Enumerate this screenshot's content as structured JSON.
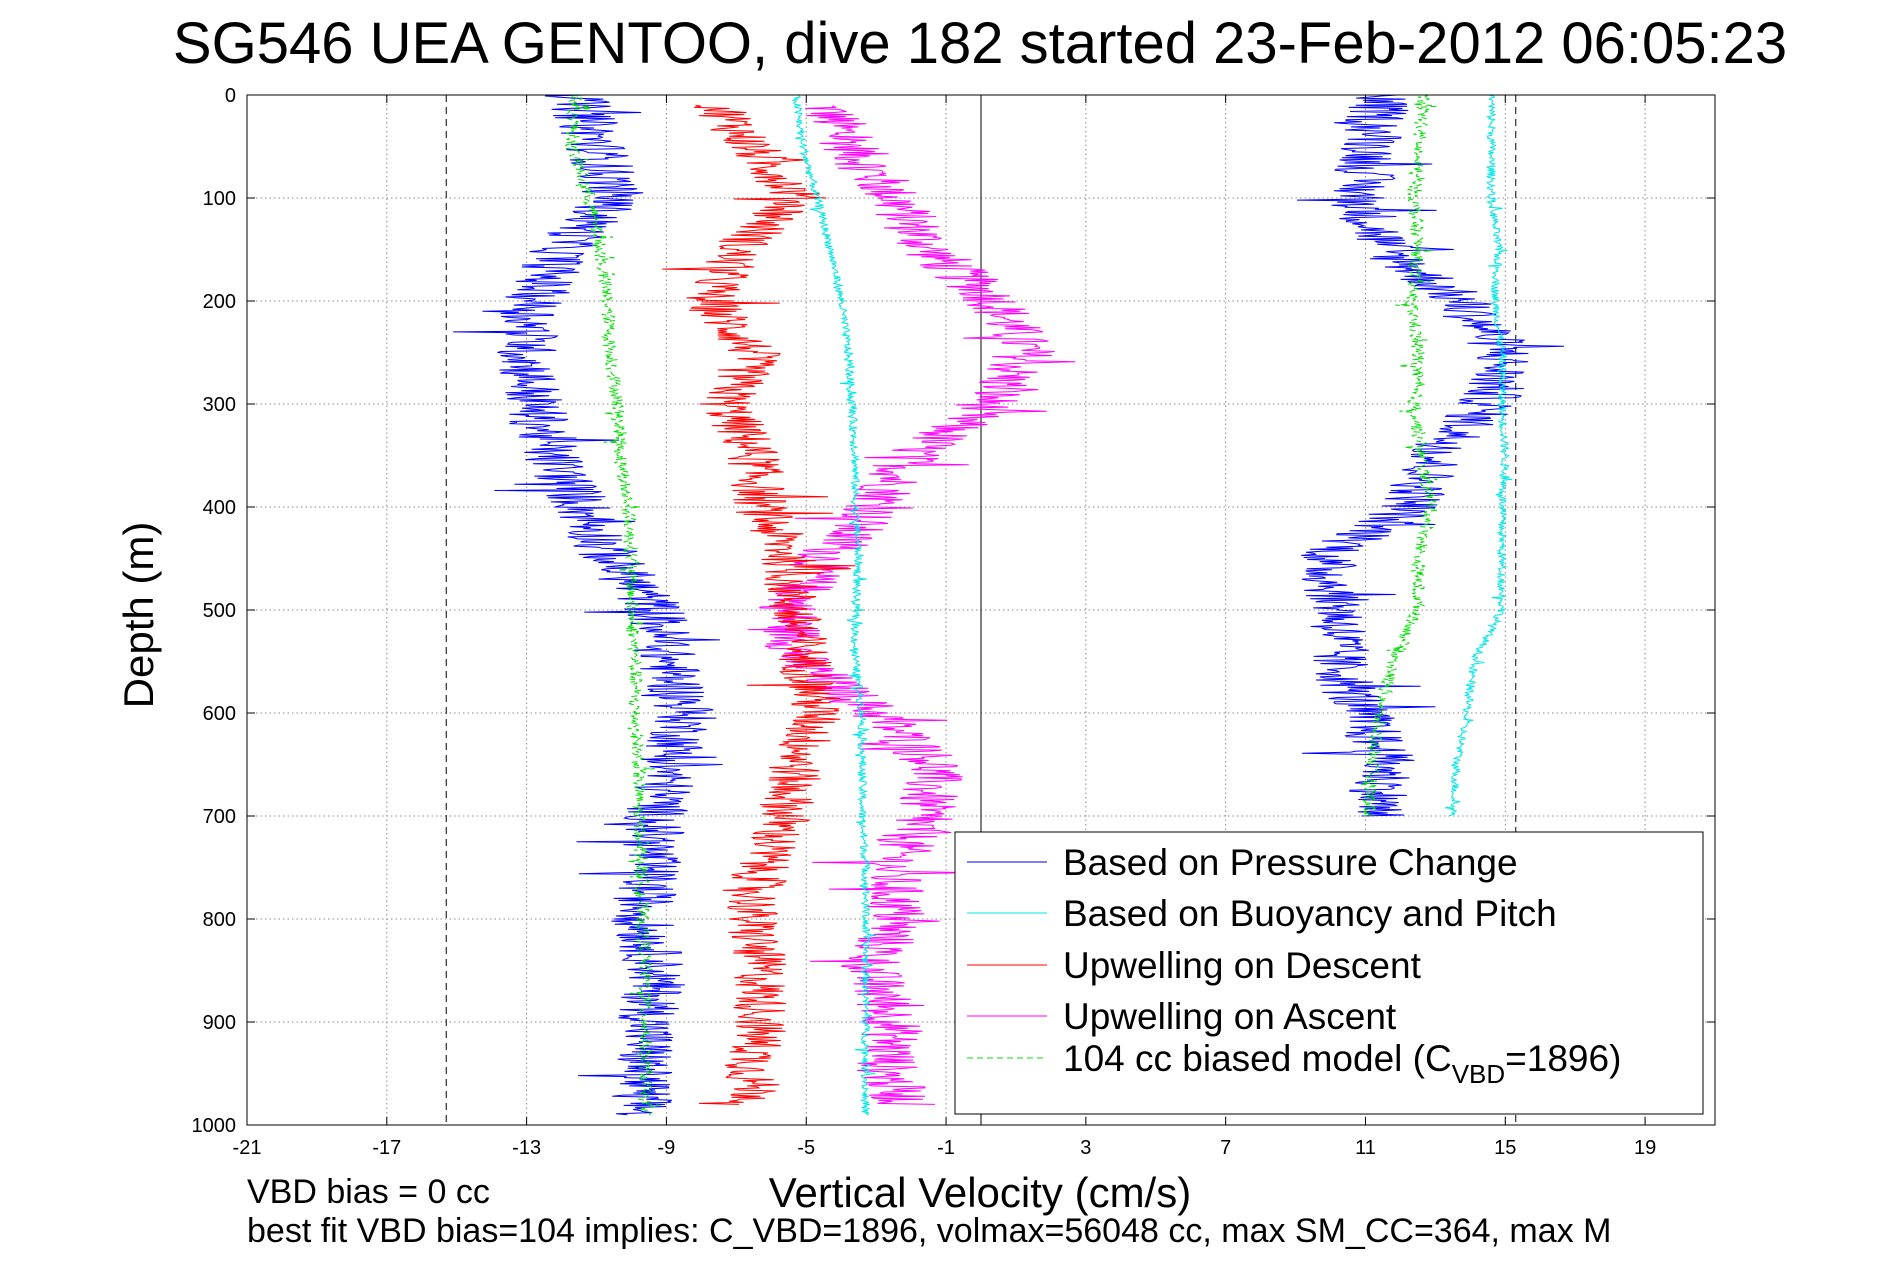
{
  "chart_data": {
    "type": "line",
    "title": "SG546 UEA GENTOO, dive 182 started 23-Feb-2012 06:05:23",
    "xlabel": "Vertical Velocity (cm/s)",
    "ylabel": "Depth (m)",
    "xlim": [
      -21,
      21
    ],
    "ylim": [
      0,
      1000
    ],
    "y_reversed": true,
    "grid": true,
    "grid_style": "dotted",
    "x_ticks": [
      -21,
      -17,
      -13,
      -9,
      -5,
      -1,
      3,
      7,
      11,
      15,
      19
    ],
    "x_tick_labels": [
      "-21",
      "-17",
      "-13",
      "-9",
      "-5",
      "-1",
      "3",
      "7",
      "11",
      "15",
      "19"
    ],
    "y_ticks": [
      0,
      100,
      200,
      300,
      400,
      500,
      600,
      700,
      800,
      900,
      1000
    ],
    "y_tick_labels": [
      "0",
      "100",
      "200",
      "300",
      "400",
      "500",
      "600",
      "700",
      "800",
      "900",
      "1000"
    ],
    "reference_lines": [
      {
        "axis": "x",
        "value": -15.3,
        "style": "dashed",
        "color": "#000000"
      },
      {
        "axis": "x",
        "value": 15.3,
        "style": "dashed",
        "color": "#000000"
      },
      {
        "axis": "x",
        "value": 0,
        "style": "solid",
        "color": "#000000"
      }
    ],
    "legend_position": "lower-right",
    "series": [
      {
        "name": "Based on Pressure Change",
        "color": "#0000ff",
        "style": "solid",
        "noise": 0.9,
        "segments": [
          {
            "depth": [
              0,
              50,
              100,
              150,
              200,
              250,
              300,
              350,
              400,
              450,
              500,
              550,
              600,
              650,
              700,
              750,
              800,
              850,
              900,
              950,
              990
            ],
            "values": [
              -11.6,
              -11.0,
              -10.5,
              -12.0,
              -12.8,
              -13.0,
              -12.8,
              -12.3,
              -11.4,
              -10.6,
              -9.3,
              -9.0,
              -8.4,
              -8.9,
              -9.3,
              -9.5,
              -9.7,
              -9.3,
              -9.5,
              -9.7,
              -9.7
            ]
          },
          {
            "depth": [
              0,
              50,
              100,
              150,
              200,
              250,
              300,
              350,
              400,
              450,
              500,
              550,
              600,
              650,
              700
            ],
            "values": [
              11.4,
              11.2,
              10.8,
              11.6,
              13.7,
              15.0,
              14.5,
              13.0,
              12.3,
              9.8,
              10.3,
              10.2,
              10.9,
              11.6,
              11.3
            ]
          }
        ]
      },
      {
        "name": "Based on Buoyancy and Pitch",
        "color": "#00e5e5",
        "style": "solid",
        "noise": 0.12,
        "segments": [
          {
            "depth": [
              0,
              50,
              100,
              150,
              200,
              250,
              300,
              350,
              400,
              450,
              500,
              550,
              600,
              650,
              700,
              750,
              800,
              850,
              900,
              950,
              990
            ],
            "values": [
              -5.3,
              -5.1,
              -4.7,
              -4.3,
              -4.0,
              -3.8,
              -3.7,
              -3.6,
              -3.6,
              -3.5,
              -3.6,
              -3.6,
              -3.4,
              -3.4,
              -3.4,
              -3.3,
              -3.3,
              -3.3,
              -3.3,
              -3.3,
              -3.3
            ]
          },
          {
            "depth": [
              0,
              50,
              100,
              150,
              200,
              250,
              300,
              350,
              400,
              450,
              500,
              550,
              600,
              650,
              700
            ],
            "values": [
              14.6,
              14.6,
              14.6,
              14.8,
              14.7,
              14.9,
              14.9,
              15.0,
              14.9,
              14.9,
              14.9,
              14.1,
              13.9,
              13.6,
              13.5
            ]
          }
        ]
      },
      {
        "name": "Upwelling on Descent",
        "color": "#ff0000",
        "style": "solid",
        "noise": 0.8,
        "segments": [
          {
            "depth": [
              10,
              50,
              100,
              150,
              200,
              250,
              300,
              350,
              400,
              450,
              500,
              550,
              600,
              650,
              700,
              750,
              800,
              850,
              900,
              950,
              980
            ],
            "values": [
              -7.5,
              -6.6,
              -5.2,
              -7.0,
              -7.8,
              -6.5,
              -7.3,
              -6.5,
              -6.3,
              -5.5,
              -5.4,
              -5.0,
              -4.7,
              -5.3,
              -5.6,
              -6.3,
              -6.6,
              -6.3,
              -6.3,
              -6.6,
              -6.4
            ]
          }
        ]
      },
      {
        "name": "Upwelling on Ascent",
        "color": "#ff00ff",
        "style": "solid",
        "noise": 0.9,
        "segments": [
          {
            "depth": [
              10,
              50,
              100,
              150,
              200,
              250,
              300,
              350,
              400,
              450,
              500,
              550,
              600,
              650,
              700,
              750,
              800,
              850,
              900,
              950,
              980
            ],
            "values": [
              -4.5,
              -3.7,
              -2.5,
              -1.5,
              0.4,
              1.3,
              0.2,
              -2.0,
              -3.0,
              -4.5,
              -5.5,
              -5.2,
              -3.0,
              -1.3,
              -1.7,
              -2.6,
              -2.4,
              -3.2,
              -2.5,
              -2.7,
              -2.2
            ]
          }
        ]
      },
      {
        "name": "104 cc biased model (C_VBD=1896)",
        "legend_main": "104 cc biased model (C",
        "legend_sub": "VBD",
        "legend_tail": "=1896)",
        "color": "#00dd00",
        "style": "dashed",
        "noise": 0.2,
        "segments": [
          {
            "depth": [
              0,
              50,
              100,
              150,
              200,
              250,
              300,
              350,
              400,
              450,
              500,
              550,
              600,
              650,
              700,
              750,
              800,
              850,
              900,
              950,
              990
            ],
            "values": [
              -11.6,
              -11.7,
              -11.2,
              -10.9,
              -10.7,
              -10.6,
              -10.4,
              -10.3,
              -10.1,
              -10.0,
              -10.0,
              -9.9,
              -9.9,
              -9.8,
              -9.8,
              -9.7,
              -9.7,
              -9.6,
              -9.6,
              -9.6,
              -9.6
            ]
          },
          {
            "depth": [
              0,
              50,
              100,
              150,
              200,
              250,
              300,
              350,
              400,
              450,
              500,
              550,
              600,
              650,
              700
            ],
            "values": [
              12.7,
              12.5,
              12.4,
              12.5,
              12.3,
              12.5,
              12.4,
              12.6,
              12.9,
              12.5,
              12.5,
              11.8,
              11.4,
              11.2,
              11.1
            ]
          }
        ]
      }
    ]
  },
  "footer": {
    "line1": "VBD bias = 0 cc",
    "line2": "best fit VBD bias=104 implies: C_VBD=1896, volmax=56048 cc, max SM_CC=364, max M"
  }
}
